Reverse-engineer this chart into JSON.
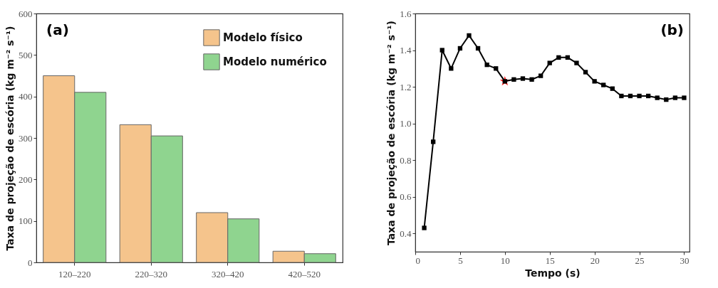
{
  "chart_data": [
    {
      "type": "bar",
      "annotations": [
        "(a)"
      ],
      "ylabel": "Taxa de projeção de escória (kg m⁻² s⁻¹)",
      "categories": [
        "120–220",
        "220–320",
        "320–420",
        "420–520"
      ],
      "ylim": [
        0,
        600
      ],
      "yticks": [
        0,
        100,
        200,
        300,
        400,
        500,
        600
      ],
      "grid": false,
      "legend": "top right",
      "series": [
        {
          "name": "Modelo físico",
          "color": "#f5c48c",
          "values": [
            450,
            332,
            120,
            27
          ]
        },
        {
          "name": "Modelo numérico",
          "color": "#8fd48f",
          "values": [
            410,
            305,
            105,
            21
          ]
        }
      ]
    },
    {
      "type": "line",
      "annotations": [
        "(b)"
      ],
      "xlabel": "Tempo (s)",
      "ylabel": "Taxa de projeção de escória (kg m⁻² s⁻¹)",
      "xlim": [
        0,
        30.6
      ],
      "xticks": [
        0,
        5,
        10,
        15,
        20,
        25,
        30
      ],
      "ylim": [
        0.3,
        1.6
      ],
      "yticks": [
        0.4,
        0.6,
        0.8,
        {
          "value": 1,
          "label": "1.0"
        },
        1.2,
        1.4,
        1.6
      ],
      "grid": false,
      "marker": "square",
      "line_style": "solid",
      "series": [
        {
          "color": "#000000",
          "x": [
            1,
            2,
            3,
            4,
            5,
            6,
            7,
            8,
            9,
            10,
            11,
            12,
            13,
            14,
            15,
            16,
            17,
            18,
            19,
            20,
            21,
            22,
            23,
            24,
            25,
            26,
            27,
            28,
            29,
            30
          ],
          "values": [
            0.43,
            0.9,
            1.4,
            1.3,
            1.41,
            1.48,
            1.41,
            1.32,
            1.3,
            1.23,
            1.24,
            1.245,
            1.24,
            1.26,
            1.33,
            1.36,
            1.36,
            1.33,
            1.28,
            1.23,
            1.21,
            1.19,
            1.15,
            1.15,
            1.15,
            1.15,
            1.14,
            1.13,
            1.14,
            1.14
          ]
        },
        {
          "type": "scatter",
          "marker": "star",
          "color": "#ff2020",
          "x": [
            10
          ],
          "values": [
            1.23
          ]
        }
      ]
    }
  ]
}
